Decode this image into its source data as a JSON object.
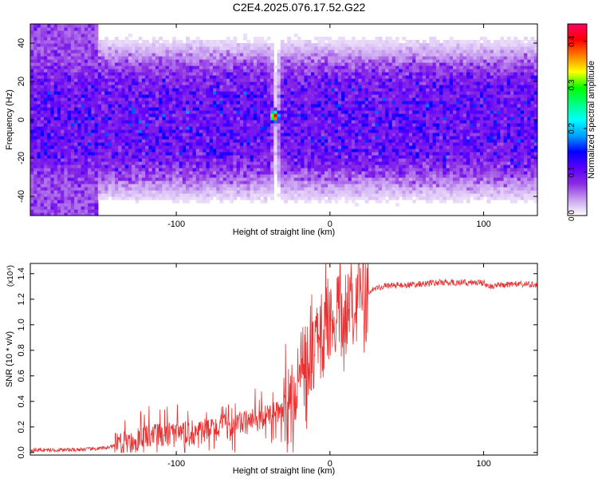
{
  "title": "C2E4.2025.076.17.52.G22",
  "chart_data": [
    {
      "type": "heatmap",
      "xlabel": "Height of straight line (km)",
      "ylabel": "Frequency (Hz)",
      "xlim": [
        -195,
        135
      ],
      "ylim": [
        -50,
        50
      ],
      "xticks": [
        -100,
        0,
        100
      ],
      "yticks": [
        -40,
        -20,
        0,
        20,
        40
      ],
      "colorbar": {
        "label": "Normalized spectral amplitude",
        "range": [
          0,
          0.44
        ],
        "ticks": [
          0.0,
          0.1,
          0.2,
          0.3,
          0.4
        ],
        "colormap": [
          "#ffffff",
          "#c8a0f0",
          "#8a2be2",
          "#5a00ff",
          "#0000ff",
          "#00a0ff",
          "#00ffff",
          "#00ff7f",
          "#00ff00",
          "#ffff00",
          "#ff8000",
          "#ff0000",
          "#ff0066"
        ]
      },
      "features": {
        "band_center_hz": 0,
        "band_halfwidth_hz": 35,
        "gap_at_km": -35,
        "peak": {
          "x": -36,
          "y": 2,
          "value": 0.44
        }
      }
    },
    {
      "type": "line",
      "xlabel": "Height of straight line (km)",
      "ylabel": "SNR (10 * v/v)",
      "y_multiplier": "(x10⁴)",
      "xlim": [
        -195,
        135
      ],
      "ylim": [
        -0.02,
        1.48
      ],
      "xticks": [
        -100,
        0,
        100
      ],
      "yticks": [
        0.0,
        0.2,
        0.4,
        0.6,
        0.8,
        1.0,
        1.2,
        1.4
      ],
      "line_color": "#e83030",
      "x": [
        -195,
        -170,
        -150,
        -140,
        -130,
        -120,
        -110,
        -100,
        -90,
        -80,
        -70,
        -60,
        -50,
        -40,
        -30,
        -25,
        -20,
        -15,
        -10,
        -5,
        0,
        5,
        10,
        15,
        20,
        25,
        30,
        40,
        50,
        60,
        70,
        80,
        90,
        100,
        105,
        110,
        120,
        135
      ],
      "y": [
        0.02,
        0.02,
        0.03,
        0.05,
        0.08,
        0.12,
        0.13,
        0.14,
        0.15,
        0.17,
        0.2,
        0.22,
        0.25,
        0.28,
        0.32,
        0.45,
        0.62,
        0.75,
        0.8,
        0.95,
        1.1,
        1.12,
        1.14,
        1.18,
        1.22,
        1.26,
        1.29,
        1.31,
        1.31,
        1.32,
        1.33,
        1.33,
        1.33,
        1.33,
        1.29,
        1.31,
        1.32,
        1.31
      ]
    }
  ]
}
